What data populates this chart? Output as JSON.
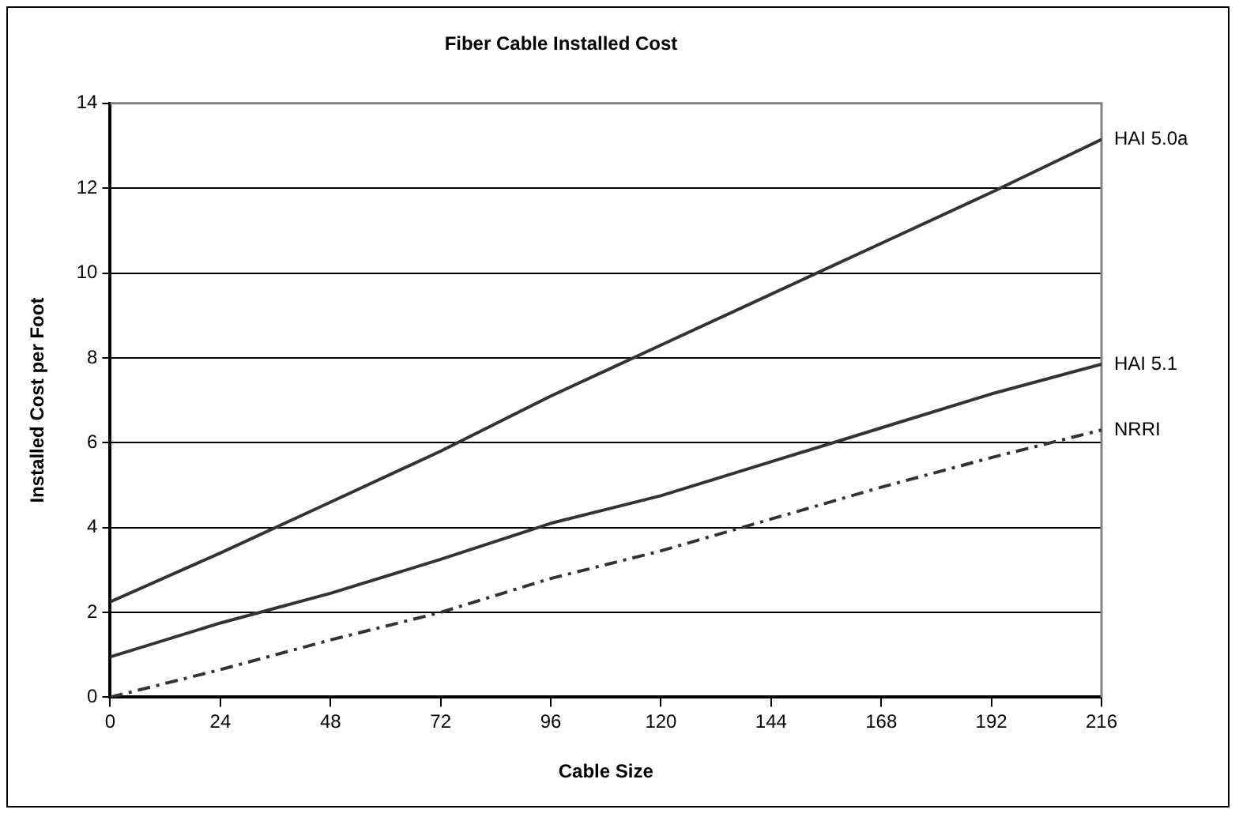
{
  "chart_data": {
    "type": "line",
    "title": "Fiber Cable Installed Cost",
    "xlabel": "Cable Size",
    "ylabel": "Installed Cost per Foot",
    "x": [
      0,
      24,
      48,
      72,
      96,
      120,
      144,
      168,
      192,
      216
    ],
    "series": [
      {
        "name": "HAI 5.0a",
        "color": "#333333",
        "line_style": "solid",
        "values": [
          2.25,
          3.4,
          4.6,
          5.8,
          7.1,
          8.3,
          9.5,
          10.7,
          11.9,
          13.15
        ]
      },
      {
        "name": "HAI 5.1",
        "color": "#333333",
        "line_style": "solid",
        "values": [
          0.95,
          1.75,
          2.45,
          3.25,
          4.1,
          4.75,
          5.55,
          6.35,
          7.15,
          7.85
        ]
      },
      {
        "name": "NRRI",
        "color": "#333333",
        "line_style": "dashed",
        "values": [
          0,
          0.65,
          1.35,
          2.0,
          2.8,
          3.45,
          4.2,
          4.95,
          5.65,
          6.3
        ]
      }
    ],
    "xlim": [
      0,
      216
    ],
    "xticks": [
      0,
      24,
      48,
      72,
      96,
      120,
      144,
      168,
      192,
      216
    ],
    "ylim": [
      0,
      14
    ],
    "yticks": [
      0,
      2,
      4,
      6,
      8,
      10,
      12,
      14
    ],
    "grid": "y",
    "legend": false,
    "marker": "none"
  }
}
